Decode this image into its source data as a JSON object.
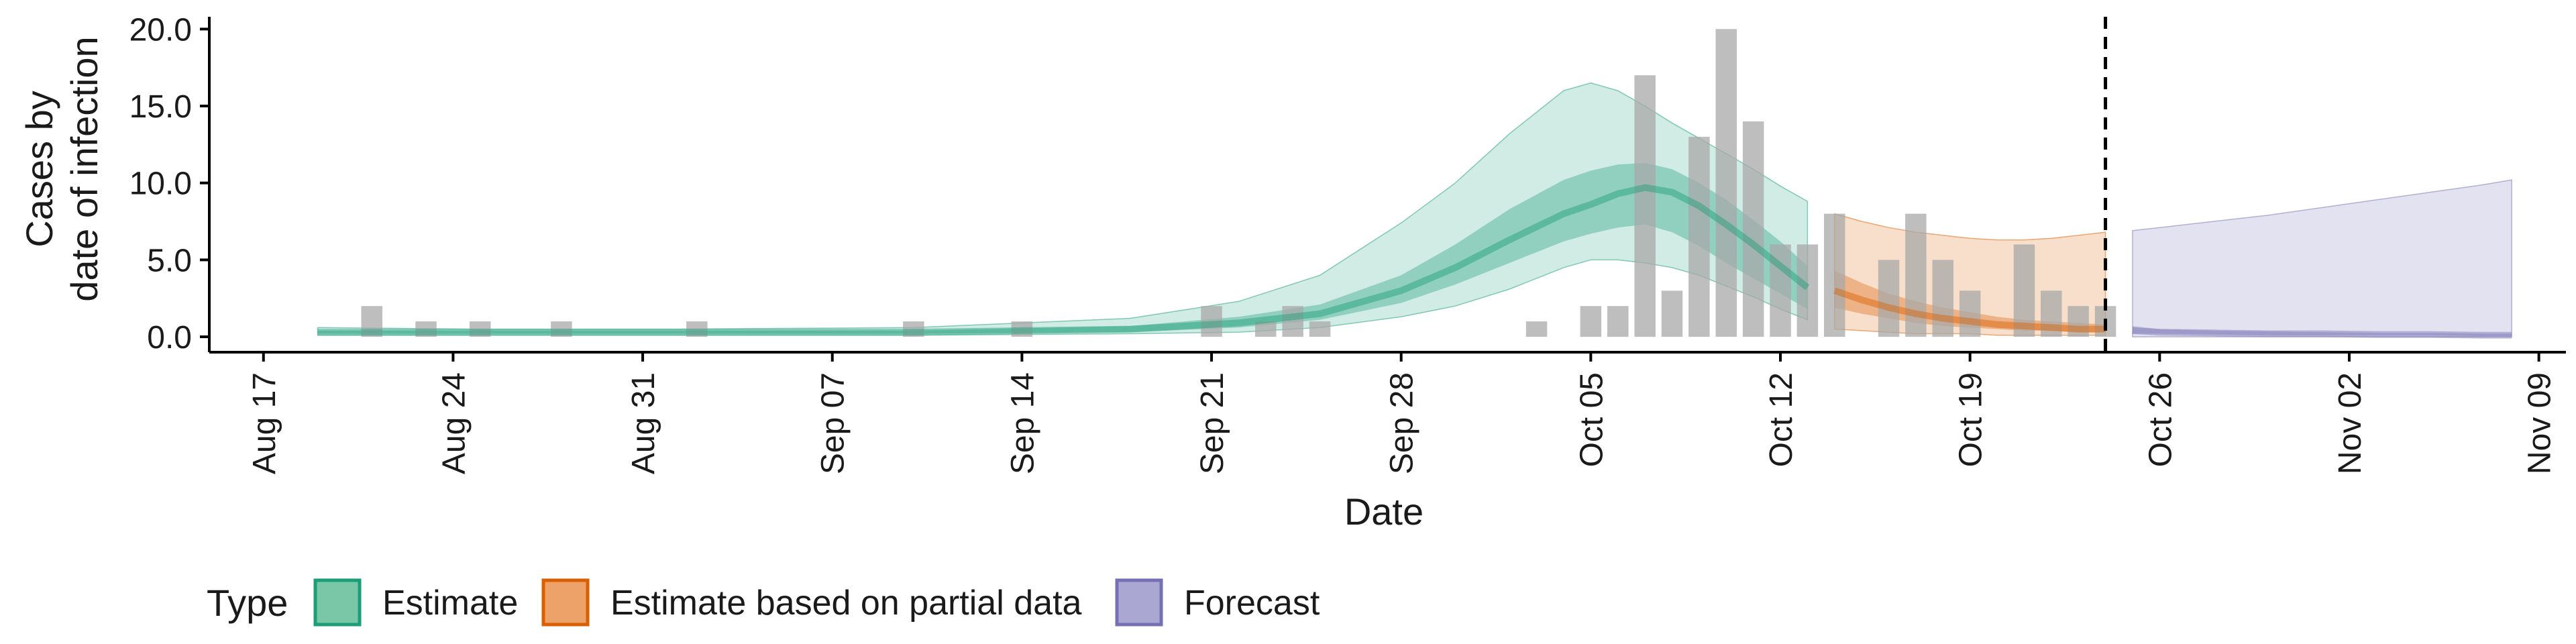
{
  "chart_data": {
    "type": "bar",
    "xlabel": "Date",
    "ylabel_line1": "Cases by",
    "ylabel_line2": "date of infection",
    "ylim": [
      -1.0,
      20.8
    ],
    "xlim": [
      "2020-08-15",
      "2020-11-10"
    ],
    "x_ticks": [
      {
        "date": "2020-08-17",
        "label": "Aug 17"
      },
      {
        "date": "2020-08-24",
        "label": "Aug 24"
      },
      {
        "date": "2020-08-31",
        "label": "Aug 31"
      },
      {
        "date": "2020-09-07",
        "label": "Sep 07"
      },
      {
        "date": "2020-09-14",
        "label": "Sep 14"
      },
      {
        "date": "2020-09-21",
        "label": "Sep 21"
      },
      {
        "date": "2020-09-28",
        "label": "Sep 28"
      },
      {
        "date": "2020-10-05",
        "label": "Oct 05"
      },
      {
        "date": "2020-10-12",
        "label": "Oct 12"
      },
      {
        "date": "2020-10-19",
        "label": "Oct 19"
      },
      {
        "date": "2020-10-26",
        "label": "Oct 26"
      },
      {
        "date": "2020-11-02",
        "label": "Nov 02"
      },
      {
        "date": "2020-11-09",
        "label": "Nov 09"
      }
    ],
    "y_ticks": [
      {
        "value": 0,
        "label": "0.0"
      },
      {
        "value": 5,
        "label": "5.0"
      },
      {
        "value": 10,
        "label": "10.0"
      },
      {
        "value": 15,
        "label": "15.0"
      },
      {
        "value": 20,
        "label": "20.0"
      }
    ],
    "bars": [
      {
        "date": "2020-08-21",
        "value": 2
      },
      {
        "date": "2020-08-23",
        "value": 1
      },
      {
        "date": "2020-08-25",
        "value": 1
      },
      {
        "date": "2020-08-28",
        "value": 1
      },
      {
        "date": "2020-09-02",
        "value": 1
      },
      {
        "date": "2020-09-10",
        "value": 1
      },
      {
        "date": "2020-09-14",
        "value": 1
      },
      {
        "date": "2020-09-21",
        "value": 2
      },
      {
        "date": "2020-09-23",
        "value": 1
      },
      {
        "date": "2020-09-24",
        "value": 2
      },
      {
        "date": "2020-09-25",
        "value": 1
      },
      {
        "date": "2020-10-03",
        "value": 1
      },
      {
        "date": "2020-10-05",
        "value": 2
      },
      {
        "date": "2020-10-06",
        "value": 2
      },
      {
        "date": "2020-10-07",
        "value": 17
      },
      {
        "date": "2020-10-08",
        "value": 3
      },
      {
        "date": "2020-10-09",
        "value": 13
      },
      {
        "date": "2020-10-10",
        "value": 20
      },
      {
        "date": "2020-10-11",
        "value": 14
      },
      {
        "date": "2020-10-12",
        "value": 6
      },
      {
        "date": "2020-10-13",
        "value": 6
      },
      {
        "date": "2020-10-14",
        "value": 8
      },
      {
        "date": "2020-10-16",
        "value": 5
      },
      {
        "date": "2020-10-17",
        "value": 8
      },
      {
        "date": "2020-10-18",
        "value": 5
      },
      {
        "date": "2020-10-19",
        "value": 3
      },
      {
        "date": "2020-10-21",
        "value": 6
      },
      {
        "date": "2020-10-22",
        "value": 3
      },
      {
        "date": "2020-10-23",
        "value": 2
      },
      {
        "date": "2020-10-24",
        "value": 2
      }
    ],
    "vline_date": "2020-10-24",
    "bands": {
      "estimate": {
        "dates": [
          "2020-08-19",
          "2020-08-25",
          "2020-09-01",
          "2020-09-10",
          "2020-09-18",
          "2020-09-22",
          "2020-09-25",
          "2020-09-28",
          "2020-09-30",
          "2020-10-02",
          "2020-10-04",
          "2020-10-05",
          "2020-10-06",
          "2020-10-07",
          "2020-10-08",
          "2020-10-09",
          "2020-10-10",
          "2020-10-11",
          "2020-10-12",
          "2020-10-13"
        ],
        "median": [
          0.3,
          0.3,
          0.3,
          0.3,
          0.5,
          0.9,
          1.5,
          3.0,
          4.5,
          6.3,
          8.0,
          8.6,
          9.3,
          9.7,
          9.4,
          8.5,
          7.3,
          6.0,
          4.6,
          3.2
        ],
        "inner_lo": [
          0.2,
          0.2,
          0.2,
          0.2,
          0.3,
          0.6,
          1.1,
          2.2,
          3.4,
          4.8,
          6.2,
          6.7,
          7.1,
          7.3,
          6.8,
          5.9,
          4.8,
          3.8,
          2.8,
          1.8
        ],
        "inner_hi": [
          0.4,
          0.4,
          0.4,
          0.4,
          0.7,
          1.3,
          2.1,
          4.0,
          6.0,
          8.3,
          10.2,
          10.8,
          11.2,
          11.3,
          10.9,
          10.0,
          8.9,
          7.6,
          6.2,
          4.6
        ],
        "outer_lo": [
          0.1,
          0.1,
          0.1,
          0.1,
          0.2,
          0.3,
          0.6,
          1.3,
          2.0,
          3.1,
          4.5,
          5.0,
          5.0,
          4.8,
          4.5,
          4.0,
          3.3,
          2.6,
          1.8,
          1.1
        ],
        "outer_hi": [
          0.6,
          0.5,
          0.5,
          0.6,
          1.2,
          2.3,
          4.0,
          7.4,
          10.0,
          13.2,
          16.0,
          16.5,
          16.0,
          15.0,
          13.9,
          12.9,
          11.9,
          10.9,
          9.8,
          8.8
        ]
      },
      "partial": {
        "dates": [
          "2020-10-14",
          "2020-10-15",
          "2020-10-16",
          "2020-10-17",
          "2020-10-18",
          "2020-10-19",
          "2020-10-20",
          "2020-10-21",
          "2020-10-22",
          "2020-10-23",
          "2020-10-24"
        ],
        "median": [
          3.0,
          2.4,
          1.9,
          1.5,
          1.2,
          1.0,
          0.8,
          0.7,
          0.6,
          0.5,
          0.5
        ],
        "inner_lo": [
          1.9,
          1.5,
          1.2,
          0.9,
          0.7,
          0.6,
          0.5,
          0.4,
          0.4,
          0.3,
          0.3
        ],
        "inner_hi": [
          4.3,
          3.5,
          2.8,
          2.3,
          1.9,
          1.6,
          1.3,
          1.1,
          1.0,
          0.9,
          0.8
        ],
        "outer_lo": [
          0.5,
          0.4,
          0.3,
          0.2,
          0.2,
          0.2,
          0.1,
          0.1,
          0.1,
          0.1,
          0.1
        ],
        "outer_hi": [
          8.0,
          7.5,
          7.1,
          6.8,
          6.6,
          6.4,
          6.3,
          6.3,
          6.4,
          6.6,
          6.8
        ]
      },
      "forecast": {
        "dates": [
          "2020-10-25",
          "2020-10-26",
          "2020-10-28",
          "2020-10-30",
          "2020-11-01",
          "2020-11-03",
          "2020-11-05",
          "2020-11-07",
          "2020-11-08"
        ],
        "median": [
          0.4,
          0.3,
          0.25,
          0.2,
          0.2,
          0.15,
          0.15,
          0.1,
          0.1
        ],
        "inner_lo": [
          0.2,
          0.2,
          0.15,
          0.1,
          0.1,
          0.1,
          0.1,
          0.05,
          0.05
        ],
        "inner_hi": [
          0.7,
          0.5,
          0.4,
          0.35,
          0.3,
          0.25,
          0.25,
          0.2,
          0.2
        ],
        "outer_lo": [
          0.0,
          0.0,
          0.0,
          0.0,
          0.0,
          0.0,
          0.0,
          0.0,
          0.0
        ],
        "outer_hi": [
          6.9,
          7.1,
          7.5,
          7.9,
          8.4,
          8.9,
          9.4,
          9.9,
          10.2
        ]
      }
    },
    "legend": {
      "title": "Type",
      "position": "bottom",
      "items": [
        {
          "key": "estimate",
          "label": "Estimate",
          "fill": "#7ac7a8",
          "stroke": "#1b9e77"
        },
        {
          "key": "partial",
          "label": "Estimate based on partial data",
          "fill": "#eda26a",
          "stroke": "#d95f02"
        },
        {
          "key": "forecast",
          "label": "Forecast",
          "fill": "#aaa7d2",
          "stroke": "#7570b3"
        }
      ]
    },
    "colors": {
      "estimate": "#1b9e77",
      "partial": "#d95f02",
      "forecast": "#7570b3",
      "bar": "#a8a8a8"
    },
    "grid": false
  }
}
